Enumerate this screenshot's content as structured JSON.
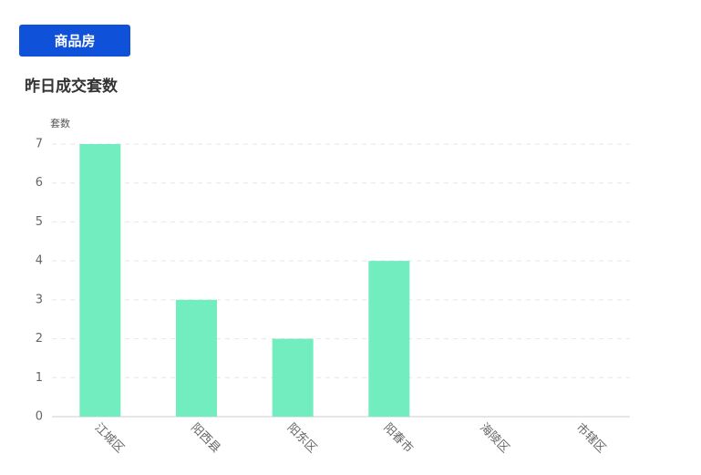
{
  "tab": "商品房",
  "chart_data": {
    "type": "bar",
    "title": "昨日成交套数",
    "y_label": "套数",
    "categories": [
      "江城区",
      "阳西县",
      "阳东区",
      "阳春市",
      "海陵区",
      "市辖区"
    ],
    "values": [
      7,
      3,
      2,
      4,
      0,
      0
    ],
    "color": "#72edbf",
    "ylim": [
      0,
      7
    ],
    "yticks": [
      0,
      1,
      2,
      3,
      4,
      5,
      6,
      7
    ],
    "grid": true
  }
}
